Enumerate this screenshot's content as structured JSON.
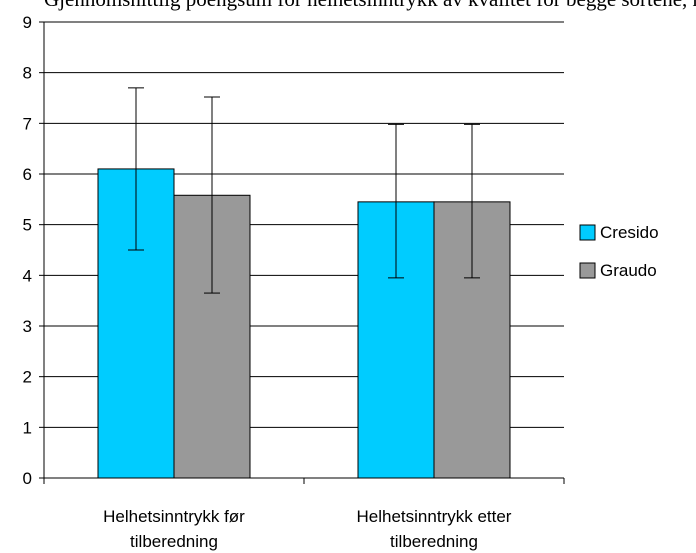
{
  "title": "Gjennomsnittlig poengsum for helhetsinntrykk av kvalitet for begge sortene, med standardavvik. Sensorene vurderte kvalitet på de to sortene Cresido og Graudo lik både før og etter tilberedning, og det var ikke signifikant forskjell mellom sortene.",
  "colors": {
    "Cresido": "#00ccff",
    "Graudo": "#999999"
  },
  "chart_data": {
    "type": "bar",
    "categories": [
      [
        "Helhetsinntrykk før",
        "tilberedning"
      ],
      [
        "Helhetsinntrykk etter",
        "tilberedning"
      ]
    ],
    "series": [
      {
        "name": "Cresido",
        "values": [
          6.1,
          5.45
        ],
        "error_low": [
          4.5,
          3.95
        ],
        "error_high": [
          7.7,
          6.98
        ]
      },
      {
        "name": "Graudo",
        "values": [
          5.58,
          5.45
        ],
        "error_low": [
          3.65,
          3.95
        ],
        "error_high": [
          7.52,
          6.98
        ]
      }
    ],
    "ylim": [
      0,
      9
    ],
    "yticks": [
      "0",
      "1",
      "2",
      "3",
      "4",
      "5",
      "6",
      "7",
      "8",
      "9"
    ],
    "grid": true,
    "legend": "right"
  }
}
